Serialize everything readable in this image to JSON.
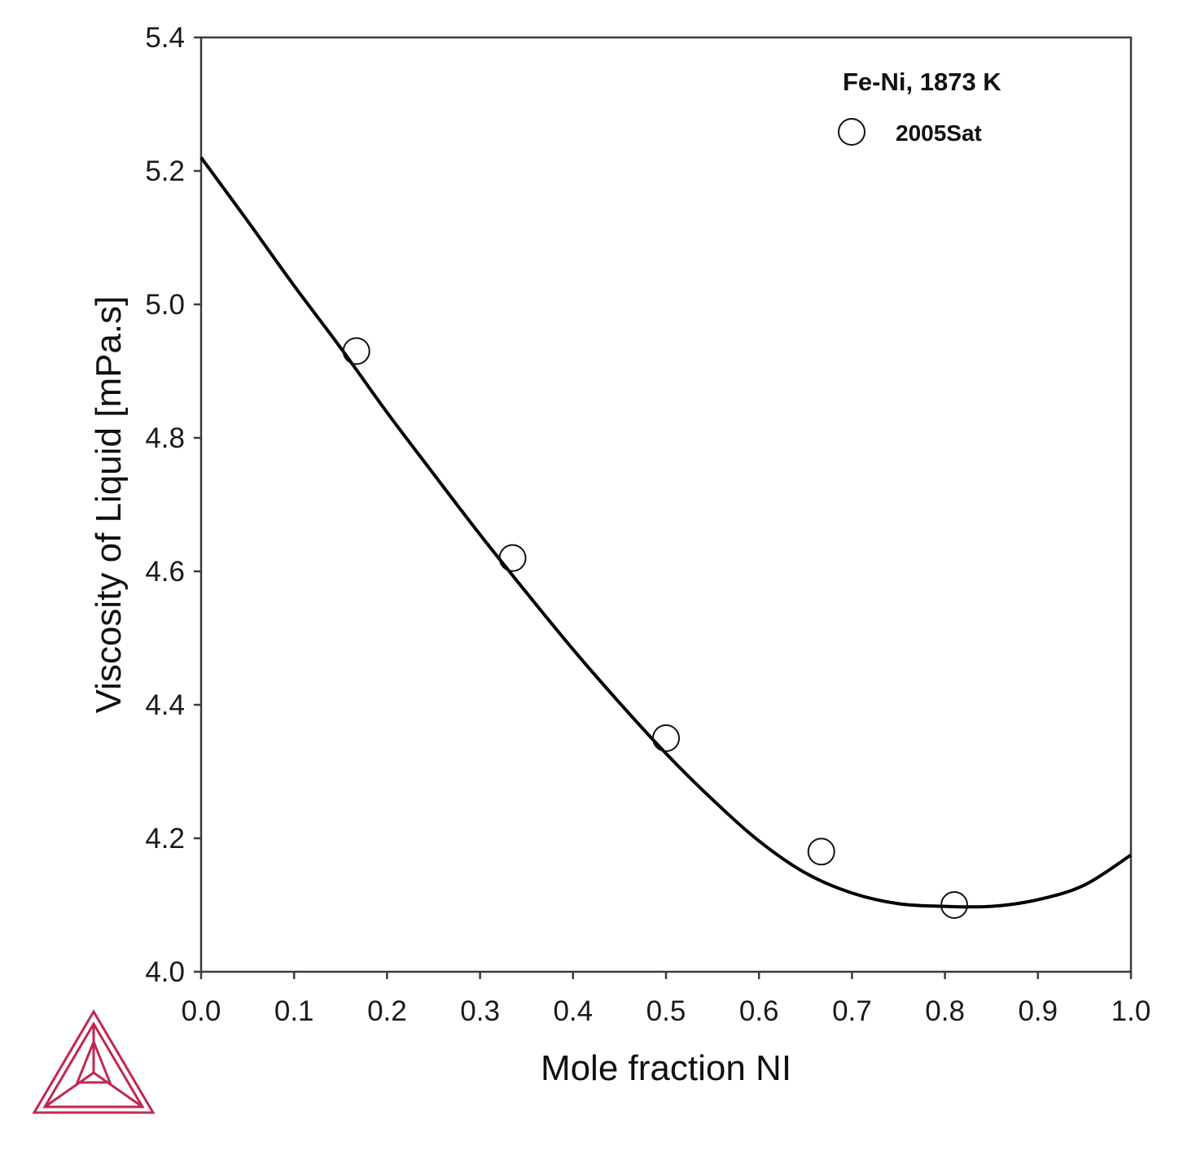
{
  "chart_data": {
    "type": "line",
    "xlabel": "Mole fraction NI",
    "ylabel": "Viscosity of Liquid [mPa.s]",
    "xlim": [
      0.0,
      1.0
    ],
    "ylim": [
      4.0,
      5.4
    ],
    "x_ticks": [
      "0.0",
      "0.1",
      "0.2",
      "0.3",
      "0.4",
      "0.5",
      "0.6",
      "0.7",
      "0.8",
      "0.9",
      "1.0"
    ],
    "y_ticks": [
      "4.0",
      "4.2",
      "4.4",
      "4.6",
      "4.8",
      "5.0",
      "5.2",
      "5.4"
    ],
    "grid": false,
    "legend": {
      "title": "Fe-Ni, 1873 K",
      "placement": "top-right",
      "entries": [
        {
          "label": "2005Sat",
          "marker": "open-circle"
        }
      ]
    },
    "series": [
      {
        "kind": "line",
        "color": "#000000",
        "x": [
          0.0,
          0.05,
          0.1,
          0.15,
          0.2,
          0.25,
          0.3,
          0.35,
          0.4,
          0.45,
          0.5,
          0.55,
          0.6,
          0.65,
          0.7,
          0.75,
          0.8,
          0.85,
          0.9,
          0.95,
          1.0
        ],
        "y": [
          5.22,
          5.125,
          5.028,
          4.935,
          4.838,
          4.746,
          4.655,
          4.568,
          4.483,
          4.403,
          4.327,
          4.258,
          4.196,
          4.148,
          4.118,
          4.102,
          4.098,
          4.098,
          4.108,
          4.13,
          4.175
        ]
      },
      {
        "name": "2005Sat",
        "kind": "scatter",
        "marker": "open-circle",
        "x": [
          0.167,
          0.335,
          0.5,
          0.667,
          0.81
        ],
        "y": [
          4.93,
          4.62,
          4.35,
          4.18,
          4.1
        ]
      }
    ]
  },
  "logo": {
    "color": "#c0284f"
  }
}
